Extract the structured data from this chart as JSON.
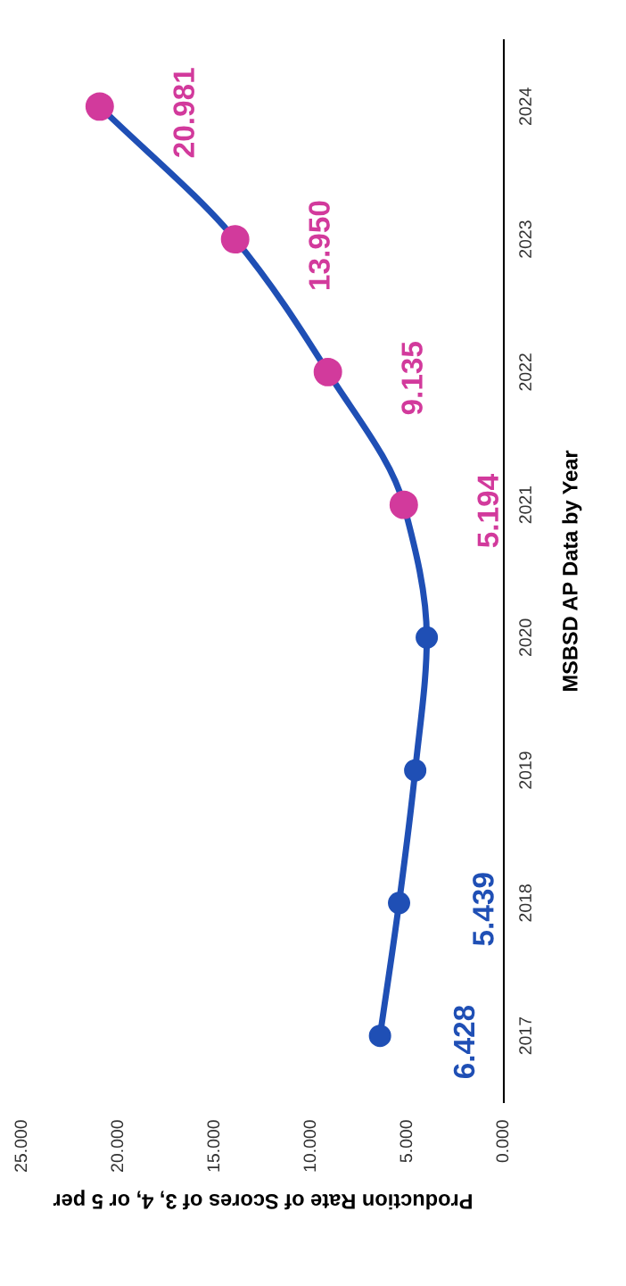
{
  "chart_data": {
    "type": "line",
    "orientation": "horizontal",
    "ylabel": "MSBSD AP Data by Year",
    "xlabel": "Production Rate of Scores of 3, 4, or 5 per",
    "categories": [
      "2024",
      "2023",
      "2022",
      "2021",
      "2020",
      "2019",
      "2018",
      "2017"
    ],
    "series": [
      {
        "color": "#1f4fb5",
        "values": [
          20.981,
          13.95,
          9.135,
          5.194,
          4.0,
          4.6,
          5.439,
          6.428
        ],
        "colors": [
          "#d23a9c",
          "#d23a9c",
          "#d23a9c",
          "#d23a9c",
          "#1f4fb5",
          "#1f4fb5",
          "#1f4fb5",
          "#1f4fb5"
        ],
        "value_labels": [
          "20.981",
          "13.950",
          "9.135",
          "5.194",
          null,
          null,
          "5.439",
          "6.428"
        ]
      }
    ],
    "xlim": [
      25,
      0
    ],
    "xticks": [
      {
        "value": 25,
        "label": "25.000"
      },
      {
        "value": 20,
        "label": "20.000"
      },
      {
        "value": 15,
        "label": "15.000"
      },
      {
        "value": 10,
        "label": "10.000"
      },
      {
        "value": 5,
        "label": "5.000"
      },
      {
        "value": 0,
        "label": "0.000"
      }
    ],
    "marker": "circle",
    "grid": false,
    "legend": false
  }
}
